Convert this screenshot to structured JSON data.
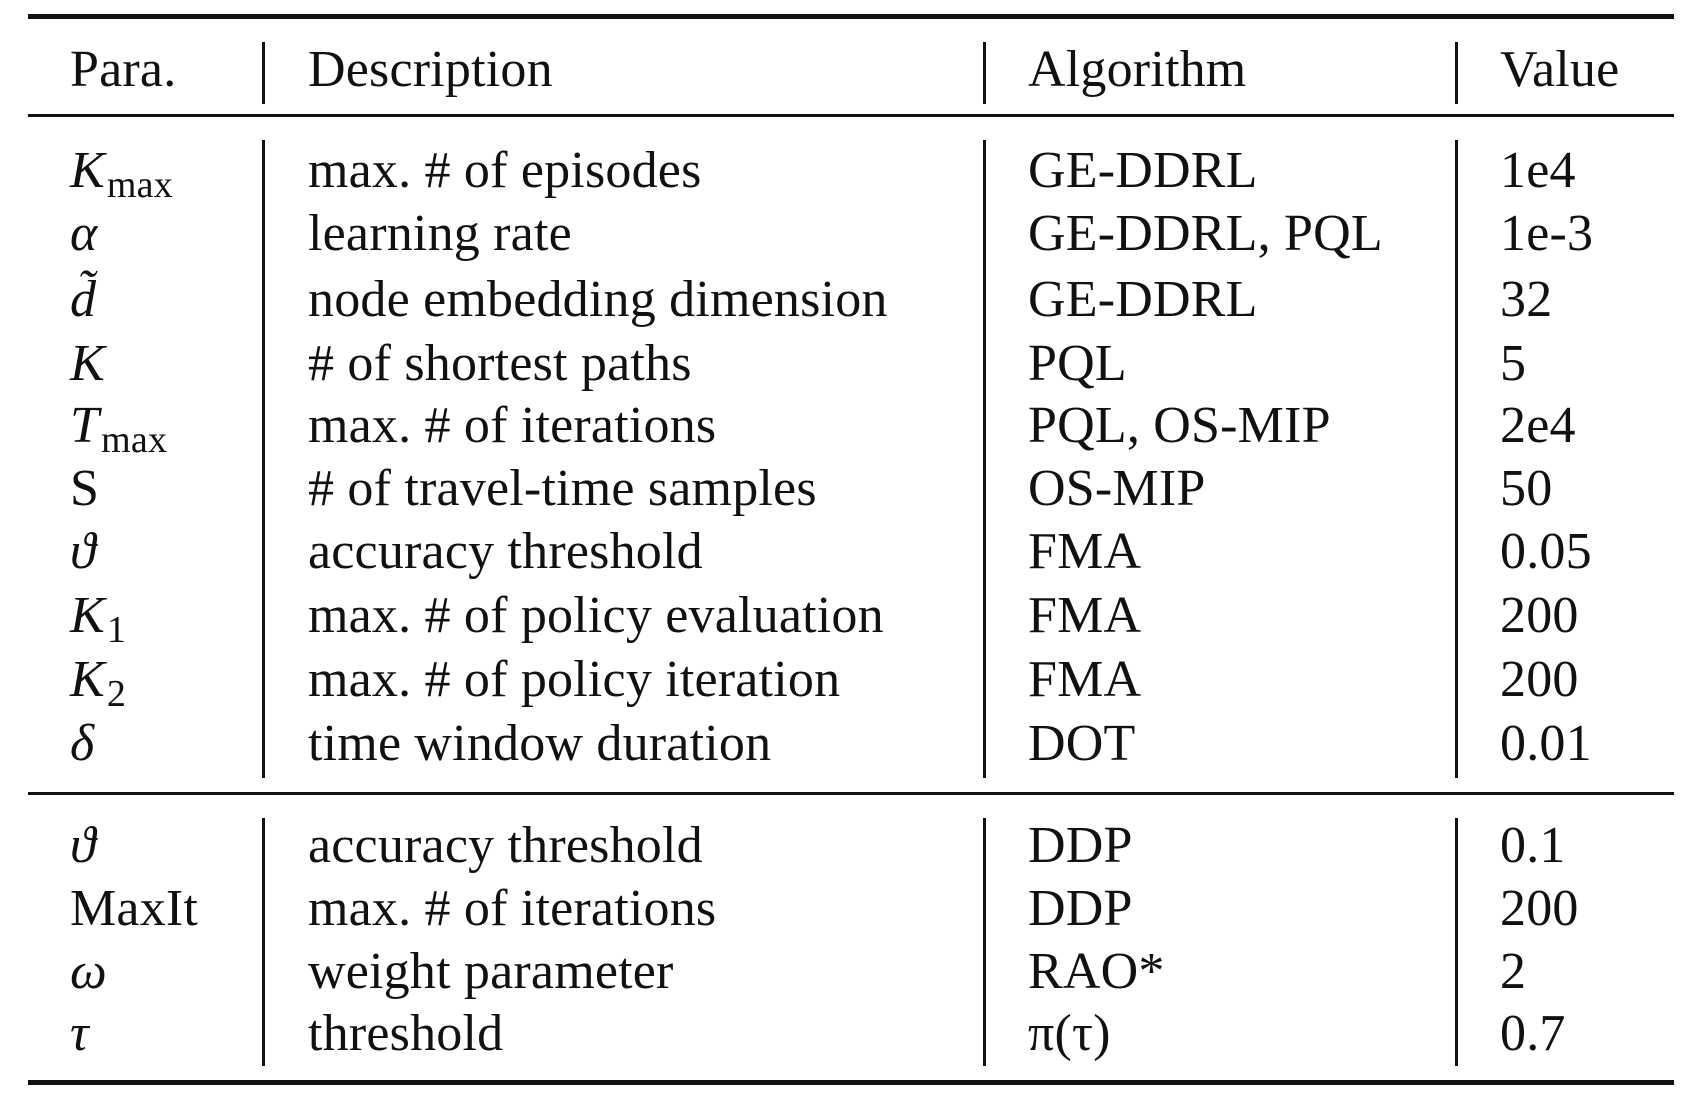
{
  "header": {
    "para": "Para.",
    "description": "Description",
    "algorithm": "Algorithm",
    "value": "Value"
  },
  "group1": [
    {
      "sym": "K",
      "sub": "max",
      "description": "max. # of episodes",
      "algorithm": "GE-DDRL",
      "value": "1e4"
    },
    {
      "sym": "α",
      "sub": "",
      "description": "learning rate",
      "algorithm": "GE-DDRL, PQL",
      "value": "1e-3"
    },
    {
      "sym": "d̃",
      "sub": "",
      "description": "node embedding dimension",
      "algorithm": "GE-DDRL",
      "value": "32"
    },
    {
      "sym": "K",
      "sub": "",
      "description": "# of shortest paths",
      "algorithm": "PQL",
      "value": "5"
    },
    {
      "sym": "T",
      "sub": "max",
      "description": "max. # of iterations",
      "algorithm": "PQL, OS-MIP",
      "value": "2e4"
    },
    {
      "sym": "S",
      "sub": "",
      "description": "# of travel-time samples",
      "algorithm": "OS-MIP",
      "value": "50"
    },
    {
      "sym": "ϑ",
      "sub": "",
      "description": "accuracy threshold",
      "algorithm": "FMA",
      "value": "0.05"
    },
    {
      "sym": "K",
      "sub": "1",
      "description": "max. # of policy evaluation",
      "algorithm": "FMA",
      "value": "200"
    },
    {
      "sym": "K",
      "sub": "2",
      "description": "max. # of policy iteration",
      "algorithm": "FMA",
      "value": "200"
    },
    {
      "sym": "δ",
      "sub": "",
      "description": "time window duration",
      "algorithm": "DOT",
      "value": "0.01"
    }
  ],
  "group2": [
    {
      "sym": "ϑ",
      "sub": "",
      "description": "accuracy threshold",
      "algorithm": "DDP",
      "value": "0.1"
    },
    {
      "sym": "MaxIt",
      "sub": "",
      "description": "max. # of iterations",
      "algorithm": "DDP",
      "value": "200"
    },
    {
      "sym": "ω",
      "sub": "",
      "description": "weight parameter",
      "algorithm": "RAO*",
      "value": "2"
    },
    {
      "sym": "τ",
      "sub": "",
      "description": "threshold",
      "algorithm": "π(τ)",
      "value": "0.7"
    }
  ]
}
